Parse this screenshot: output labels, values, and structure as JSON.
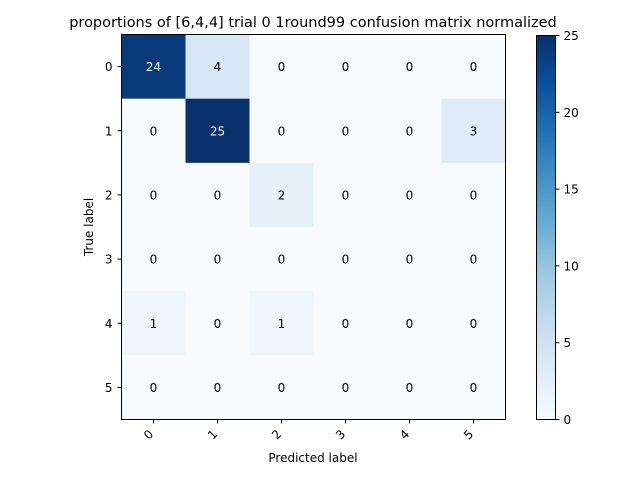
{
  "chart_data": {
    "type": "heatmap",
    "title": "proportions of [6,4,4] trial 0 1round99 confusion matrix normalized",
    "xlabel": "Predicted label",
    "ylabel": "True label",
    "x_categories": [
      "0",
      "1",
      "2",
      "3",
      "4",
      "5"
    ],
    "y_categories": [
      "0",
      "1",
      "2",
      "3",
      "4",
      "5"
    ],
    "values": [
      [
        24,
        4,
        0,
        0,
        0,
        0
      ],
      [
        0,
        25,
        0,
        0,
        0,
        3
      ],
      [
        0,
        0,
        2,
        0,
        0,
        0
      ],
      [
        0,
        0,
        0,
        0,
        0,
        0
      ],
      [
        1,
        0,
        1,
        0,
        0,
        0
      ],
      [
        0,
        0,
        0,
        0,
        0,
        0
      ]
    ],
    "colorbar": {
      "colormap": "Blues",
      "range": [
        0,
        25
      ],
      "ticks": [
        0,
        5,
        10,
        15,
        20,
        25
      ]
    },
    "x_tick_rotation_deg": 45,
    "grid": false
  }
}
